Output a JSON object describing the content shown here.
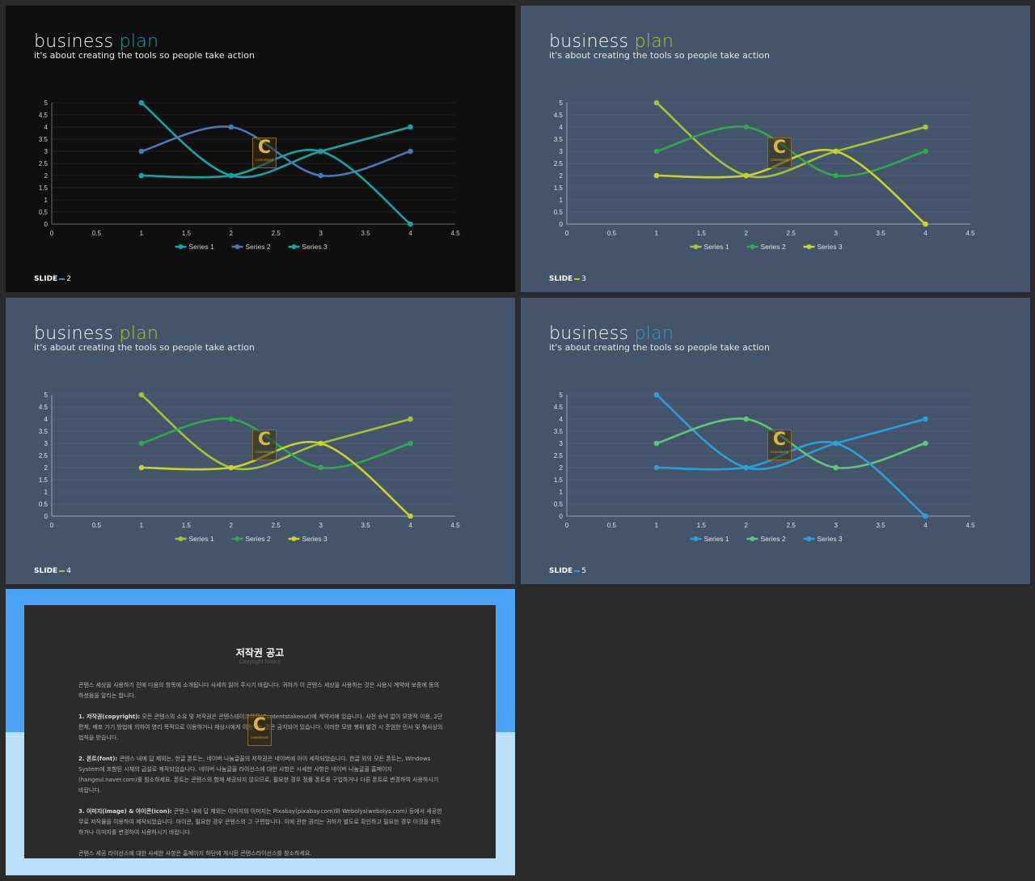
{
  "slides": [
    {
      "title_main": "business",
      "title_accent": "plan",
      "subtitle": "it's about creating the tools so people take action",
      "footer_label": "SLIDE",
      "footer_number": "2",
      "colors": {
        "bg": "#0f0f10",
        "accent": "#1aa3a3",
        "series": [
          "#1aa3a3",
          "#4a78b7",
          "#1aa3a3"
        ],
        "grid": "#2a2a2a",
        "axis": "#6b6b6b",
        "text": "#d0d0d0"
      }
    },
    {
      "title_main": "business",
      "title_accent": "plan",
      "subtitle": "it's about creating the tools so people take action",
      "footer_label": "SLIDE",
      "footer_number": "3",
      "colors": {
        "bg": "#44546a",
        "accent": "#b0c832",
        "series": [
          "#a8c13a",
          "#2fa84f",
          "#c8d42a"
        ],
        "grid": "#51617a",
        "axis": "#9aa6b8",
        "text": "#e0e4ea"
      }
    },
    {
      "title_main": "business",
      "title_accent": "plan",
      "subtitle": "it's about creating the tools so people take action",
      "footer_label": "SLIDE",
      "footer_number": "4",
      "colors": {
        "bg": "#44546a",
        "accent": "#b0c832",
        "series": [
          "#a8c13a",
          "#2fa84f",
          "#c8d42a"
        ],
        "grid": "#51617a",
        "axis": "#9aa6b8",
        "text": "#e0e4ea"
      }
    },
    {
      "title_main": "business",
      "title_accent": "plan",
      "subtitle": "it's about creating the tools so people take action",
      "footer_label": "SLIDE",
      "footer_number": "5",
      "colors": {
        "bg": "#44546a",
        "accent": "#2b9fd8",
        "series": [
          "#2b9fd8",
          "#5cc87a",
          "#2b9fd8"
        ],
        "grid": "#51617a",
        "axis": "#9aa6b8",
        "text": "#e0e4ea"
      }
    }
  ],
  "chart_data": {
    "type": "line",
    "x": [
      1,
      2,
      3,
      4
    ],
    "series": [
      {
        "name": "Series 1",
        "values": [
          5,
          2,
          3,
          4
        ]
      },
      {
        "name": "Series 2",
        "values": [
          3,
          4,
          2,
          3
        ]
      },
      {
        "name": "Series 3",
        "values": [
          2,
          2,
          3,
          0
        ]
      }
    ],
    "xlim": [
      0,
      4.5
    ],
    "ylim": [
      0,
      5
    ],
    "xticks": [
      "0",
      "0.5",
      "1",
      "1.5",
      "2",
      "2.5",
      "3",
      "3.5",
      "4",
      "4.5"
    ],
    "yticks": [
      "0",
      "0.5",
      "1",
      "1.5",
      "2",
      "2.5",
      "3",
      "3.5",
      "4",
      "4.5",
      "5"
    ],
    "legend": "bottom",
    "smooth": true,
    "grid": true
  },
  "logo": {
    "letter": "C",
    "text": "CONTENTS"
  },
  "notice": {
    "title": "저작권 공고",
    "subtitle": "Copyright Notice",
    "intro": "콘텐스 세상을 사용하기 전에 다음의 항목에 소개됩니다 사세히 읽어 주시기 바랍니다. 귀하가 이 콘텐스 세상을 사용하는 것은 사용시 계약에 보증에 동의하셨음을 알리는 합니다.",
    "p1_head": "1. 저작권(copyright):",
    "p1_body": "모든 콘텐스의 소유 및 저작권은 콘텐스테이크아웃(Contentstakeout)에 계약서에 있습니다. 사전 승낙 없이 모방적 이용, 2단편제, 배포 가기 방법에 의하여 영리 목적으로 이용하거나 재상시에게 이용하는 것은 금지되어 있습니다. 이러한 모방 행위 발견 시 준엄한 민사 및 형사상의 법칙을 받습니다.",
    "p2_head": "2. 폰트(font):",
    "p2_body": "콘텐스 내에 답 제외는, 한글 폰트는, 네이버 나눔글꼴의 저작권은 네이버에 아이 세작되었습니다. 한글 외의 모든 폰트는, Windows System에 포함된 시체의 급설로 제작되었습니다. 네이버 나눔글꼴 라이선스에 대한 사항은 시세한 사항은 네이버 나눔글꼴 홈페이지(hangeul.naver.com)를 참소하세요. 폰트는 콘텐스의 함께 세공되지 않으므로, 필요한 경우 정품 폰트를 구입하거나 다른 폰트로 변경하여 사용하시기 바랍니다.",
    "p3_head": "3. 이미지(image) & 아이콘(icon):",
    "p3_body": "콘텐스 내에 답 제외는 이미지의 이미지는 Pixabay(pixabay.com)와 Webolys(webolys.com) 등에서 세공한 무료 저작물을 이용하여 제작되었습니다. 아이콘, 필요한 경우 콘텐스의 그 구편합니다. 이에 관한 권리는 귀하가 별도로 확인하고 필요한 경우 이것을 취득하거나 이미지를 변경하여 사용하시기 바랍니다.",
    "closing": "콘텐스 세공 라이선스에 대한 사세한 사항은 홈페이지 하단에 게시된 콘텐스라이선스를 참소하세요."
  }
}
